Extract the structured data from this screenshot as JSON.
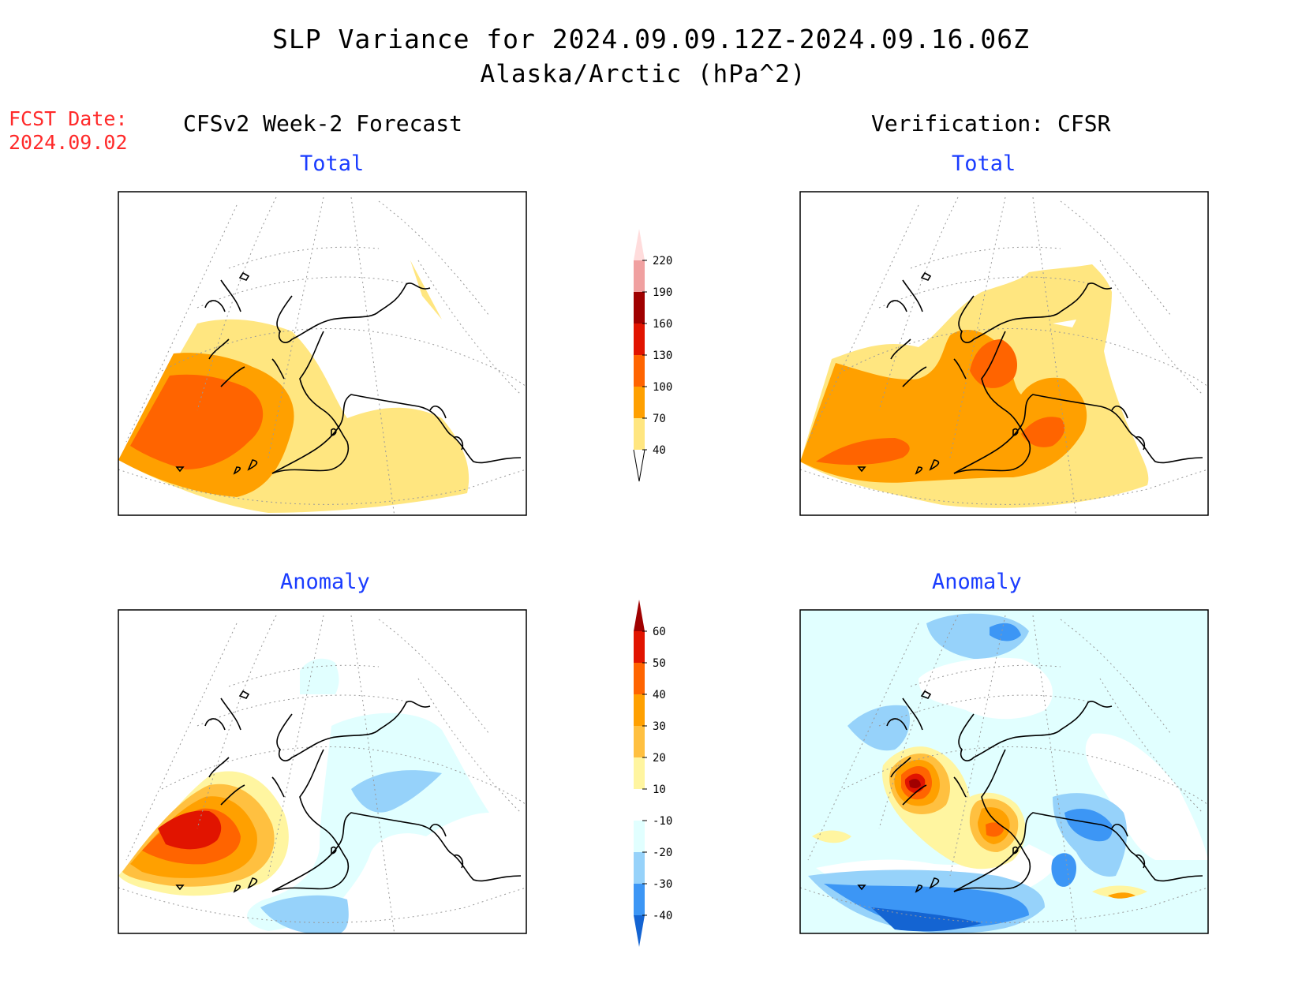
{
  "header": {
    "title": "SLP Variance for 2024.09.09.12Z-2024.09.16.06Z",
    "subtitle": "Alaska/Arctic (hPa^2)",
    "fcst_label": "FCST Date:",
    "fcst_date": "2024.09.02"
  },
  "columns": {
    "left": "CFSv2 Week-2 Forecast",
    "right": "Verification: CFSR"
  },
  "panels": {
    "total_label": "Total",
    "anomaly_label": "Anomaly"
  },
  "colorbars": {
    "total": {
      "levels": [
        "40",
        "70",
        "100",
        "130",
        "160",
        "190",
        "220"
      ],
      "colors": [
        "#ffe680",
        "#ffa000",
        "#ff6400",
        "#e11400",
        "#a00000",
        "#f0a0a0",
        "#ffdcdc"
      ]
    },
    "anomaly": {
      "levels": [
        "60",
        "50",
        "40",
        "30",
        "20",
        "10",
        "-10",
        "-20",
        "-30",
        "-40"
      ],
      "colors": [
        "#a00000",
        "#e11400",
        "#ff6400",
        "#ffa000",
        "#ffc040",
        "#fff5a0",
        "#ffffff",
        "#e1ffff",
        "#96d2fa",
        "#3c96f5",
        "#1464d2"
      ]
    }
  }
}
